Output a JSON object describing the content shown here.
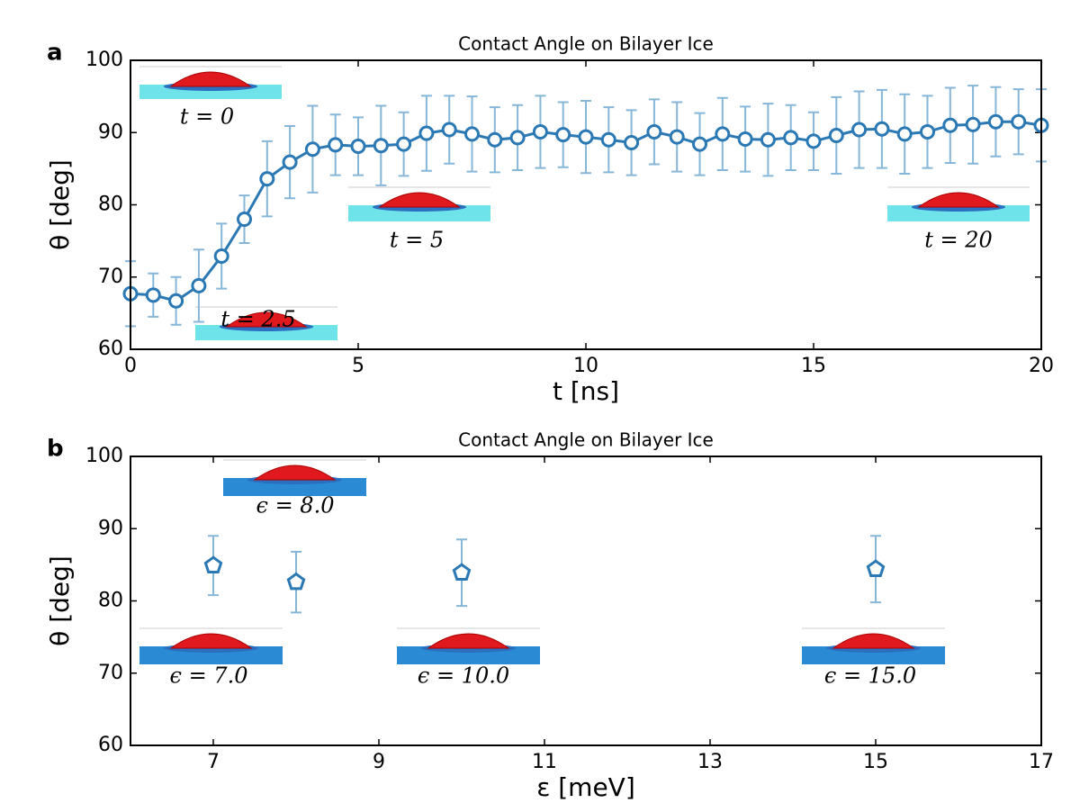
{
  "chart_data": [
    {
      "type": "line",
      "panel_label": "a",
      "title": "Contact Angle on Bilayer Ice",
      "x_label": "t [ns]",
      "y_label": "θ [deg]",
      "x": [
        0,
        0.5,
        1,
        1.5,
        2,
        2.5,
        3,
        3.5,
        4,
        4.5,
        5,
        5.5,
        6,
        6.5,
        7,
        7.5,
        8,
        8.5,
        9,
        9.5,
        10,
        10.5,
        11,
        11.5,
        12,
        12.5,
        13,
        13.5,
        14,
        14.5,
        15,
        15.5,
        16,
        16.5,
        17,
        17.5,
        18,
        18.5,
        19,
        19.5,
        20
      ],
      "values": [
        67.7,
        67.5,
        66.7,
        68.8,
        72.9,
        78.0,
        83.6,
        85.9,
        87.7,
        88.3,
        88.1,
        88.2,
        88.4,
        89.9,
        90.4,
        89.8,
        89.0,
        89.3,
        90.1,
        89.7,
        89.4,
        89.0,
        88.6,
        90.1,
        89.4,
        88.4,
        89.8,
        89.1,
        89.0,
        89.3,
        88.8,
        89.6,
        90.4,
        90.5,
        89.8,
        90.1,
        91.0,
        91.1,
        91.5,
        91.5,
        91.0
      ],
      "errors": [
        4.5,
        3.0,
        3.3,
        5.0,
        4.5,
        3.3,
        5.2,
        5.0,
        6.0,
        4.2,
        4.0,
        5.5,
        4.4,
        5.2,
        4.7,
        5.2,
        4.5,
        4.5,
        5.0,
        4.5,
        5.0,
        4.5,
        4.5,
        4.5,
        4.8,
        4.3,
        5.0,
        4.5,
        5.0,
        4.5,
        4.0,
        5.3,
        5.3,
        5.4,
        5.5,
        5.0,
        5.2,
        5.4,
        4.8,
        4.5,
        5.0
      ],
      "color": "#2a78b4",
      "error_color": "#86b6d8",
      "marker": "circle",
      "xlim": [
        0,
        20
      ],
      "ylim": [
        60,
        100
      ],
      "xticks": [
        0,
        5,
        10,
        15,
        20
      ],
      "yticks": [
        60,
        70,
        80,
        90,
        100
      ],
      "annotations": [
        "t = 0",
        "t = 2.5",
        "t = 5",
        "t = 20"
      ]
    },
    {
      "type": "scatter",
      "panel_label": "b",
      "title": "Contact Angle on Bilayer Ice",
      "x_label": "ε [meV]",
      "y_label": "θ [deg]",
      "x": [
        7,
        8,
        10,
        15
      ],
      "values": [
        84.9,
        82.6,
        83.9,
        84.4
      ],
      "errors": [
        4.1,
        4.2,
        4.6,
        4.6
      ],
      "color": "#2a78b4",
      "error_color": "#86b6d8",
      "marker": "pentagon",
      "xlim": [
        6,
        17
      ],
      "ylim": [
        60,
        100
      ],
      "xticks": [
        7,
        9,
        11,
        13,
        15,
        17
      ],
      "yticks": [
        60,
        70,
        80,
        90,
        100
      ],
      "annotations": [
        "ϵ = 7.0",
        "ϵ = 8.0",
        "ϵ = 10.0",
        "ϵ = 15.0"
      ]
    }
  ]
}
